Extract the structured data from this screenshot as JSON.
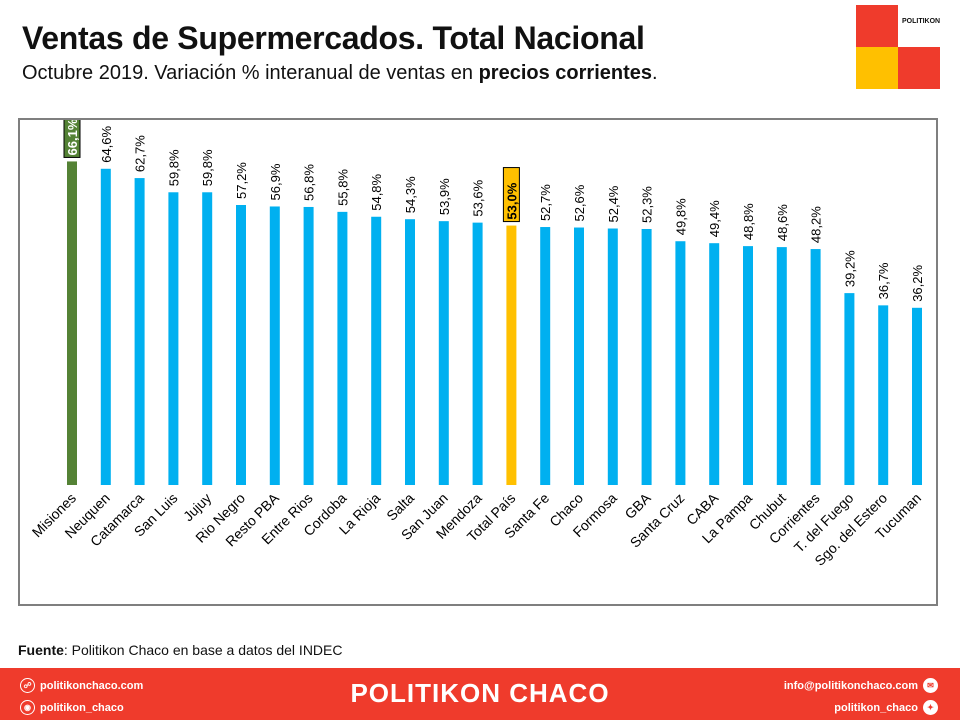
{
  "header": {
    "title": "Ventas de Supermercados. Total Nacional",
    "subtitle_prefix": "Octubre 2019. Variación % interanual de ventas en ",
    "subtitle_bold": "precios corrientes",
    "subtitle_suffix": "."
  },
  "logo": {
    "text": "POLITIKON"
  },
  "colors": {
    "default_bar": "#00b0f0",
    "highlight_max": "#548235",
    "highlight_total": "#ffc000",
    "footer": "#ef3b2c"
  },
  "chart_data": {
    "type": "bar",
    "title": "",
    "xlabel": "",
    "ylabel": "",
    "ylim": [
      0,
      70
    ],
    "grid": false,
    "legend": "none",
    "categories": [
      "Misiones",
      "Neuquen",
      "Catamarca",
      "San Luis",
      "Jujuy",
      "Rio Negro",
      "Resto PBA",
      "Entre Rios",
      "Cordoba",
      "La Rioja",
      "Salta",
      "San Juan",
      "Mendoza",
      "Total País",
      "Santa Fe",
      "Chaco",
      "Formosa",
      "GBA",
      "Santa Cruz",
      "CABA",
      "La Pampa",
      "Chubut",
      "Corrientes",
      "T. del Fuego",
      "Sgo. del Estero",
      "Tucuman"
    ],
    "values": [
      66.1,
      64.6,
      62.7,
      59.8,
      59.8,
      57.2,
      56.9,
      56.8,
      55.8,
      54.8,
      54.3,
      53.9,
      53.6,
      53.0,
      52.7,
      52.6,
      52.4,
      52.3,
      49.8,
      49.4,
      48.8,
      48.6,
      48.2,
      39.2,
      36.7,
      36.2
    ],
    "data_labels": [
      "66,1%",
      "64,6%",
      "62,7%",
      "59,8%",
      "59,8%",
      "57,2%",
      "56,9%",
      "56,8%",
      "55,8%",
      "54,8%",
      "54,3%",
      "53,9%",
      "53,6%",
      "53,0%",
      "52,7%",
      "52,6%",
      "52,4%",
      "52,3%",
      "49,8%",
      "49,4%",
      "48,8%",
      "48,6%",
      "48,2%",
      "39,2%",
      "36,7%",
      "36,2%"
    ],
    "highlights": {
      "Misiones": "max",
      "Total País": "total"
    }
  },
  "source": {
    "label": "Fuente",
    "text": ": Politikon Chaco en base a datos del INDEC"
  },
  "footer": {
    "web": "politikonchaco.com",
    "instagram": "politikon_chaco",
    "brand": "POLITIKON CHACO",
    "email": "info@politikonchaco.com",
    "twitter": "politikon_chaco"
  }
}
